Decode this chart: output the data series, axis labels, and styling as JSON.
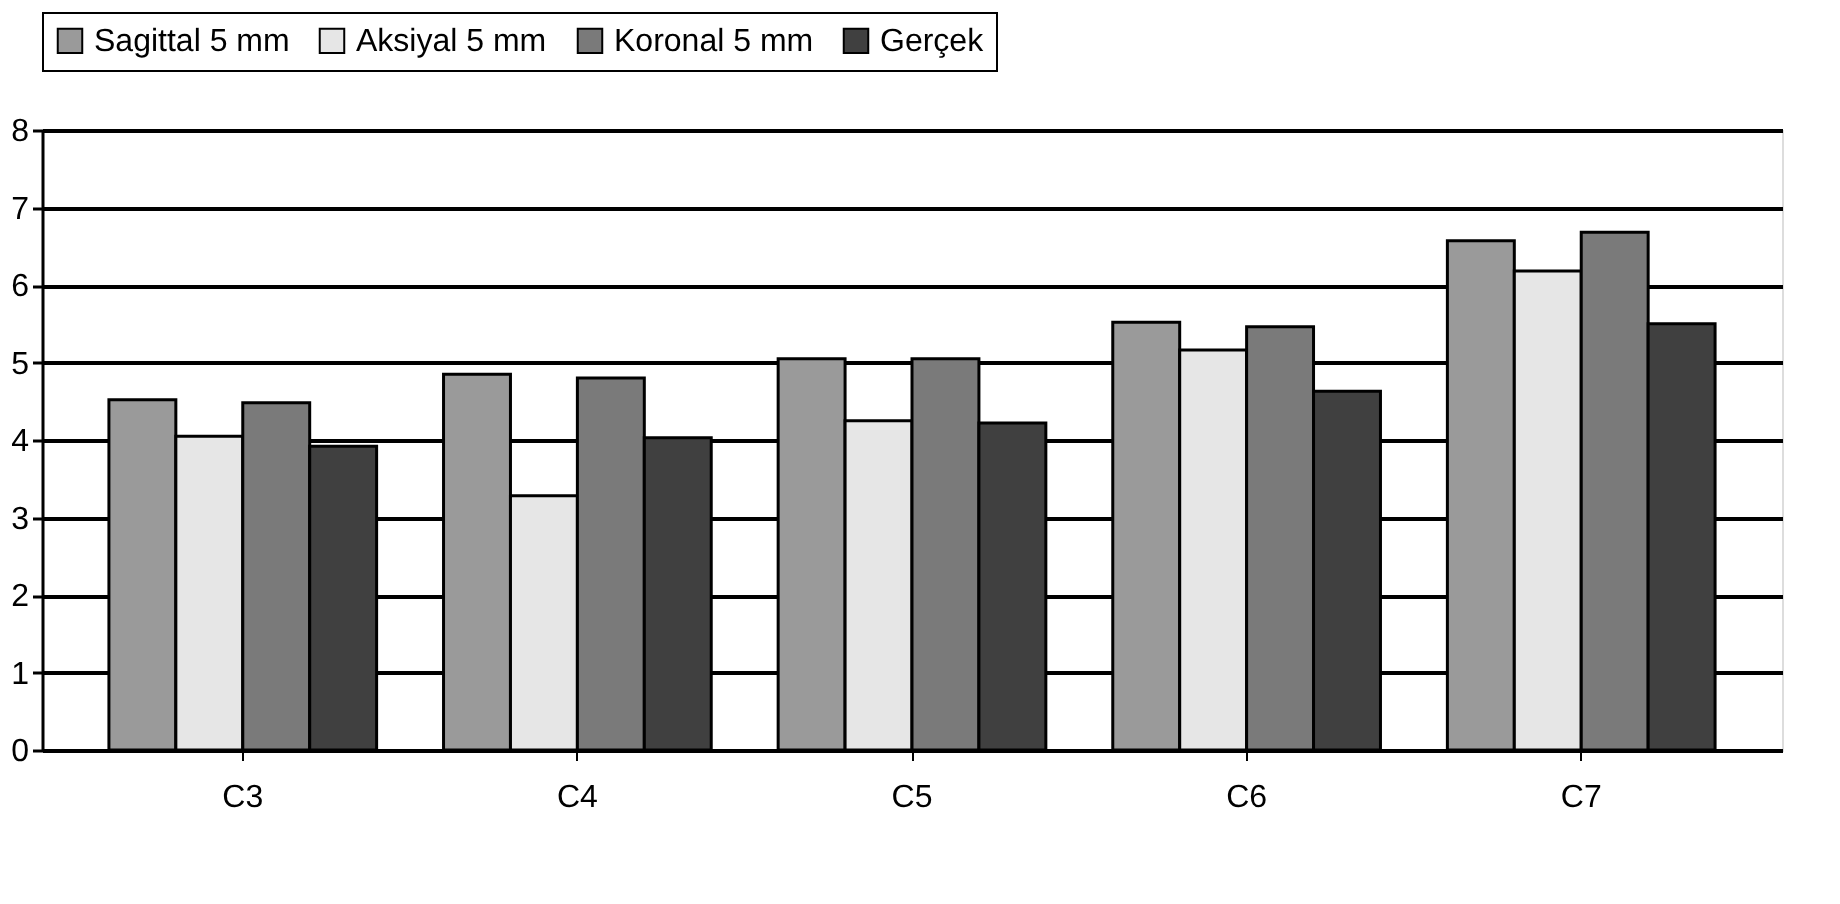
{
  "chart_data": {
    "type": "bar",
    "categories": [
      "C3",
      "C4",
      "C5",
      "C6",
      "C7"
    ],
    "series": [
      {
        "name": "Sagittal 5 mm",
        "color": "#9a9a9a",
        "values": [
          4.52,
          4.85,
          5.05,
          5.52,
          6.57
        ]
      },
      {
        "name": "Aksiyal 5 mm",
        "color": "#e6e6e6",
        "values": [
          4.05,
          3.28,
          4.25,
          5.16,
          6.18
        ]
      },
      {
        "name": "Koronal 5 mm",
        "color": "#7a7a7a",
        "values": [
          4.48,
          4.8,
          5.05,
          5.46,
          6.68
        ]
      },
      {
        "name": "Gerçek",
        "color": "#404040",
        "values": [
          3.92,
          4.03,
          4.22,
          4.63,
          5.5
        ]
      }
    ],
    "ylim": [
      0,
      8
    ],
    "yticks": [
      0,
      1,
      2,
      3,
      4,
      5,
      6,
      7,
      8
    ],
    "grid": "y",
    "legend": "top"
  }
}
